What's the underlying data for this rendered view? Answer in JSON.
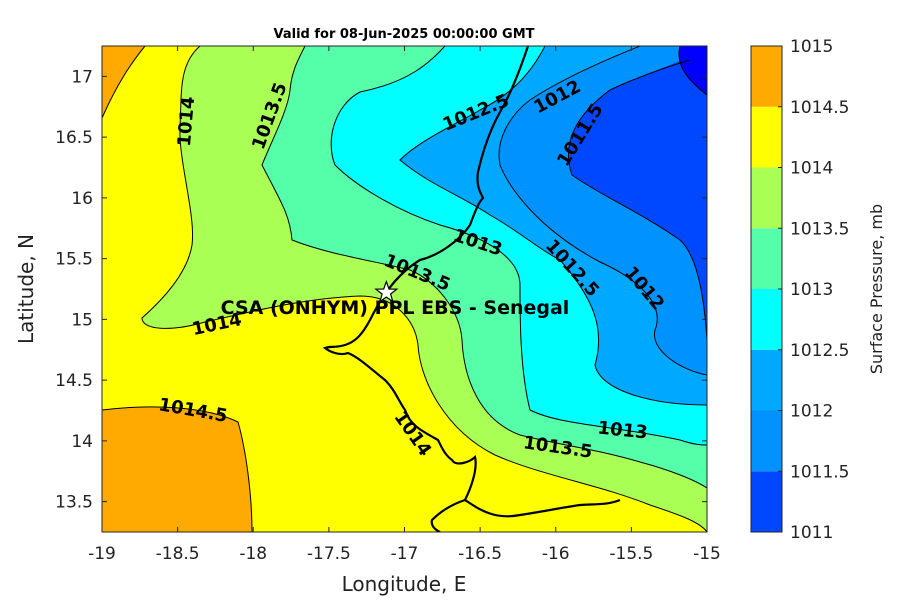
{
  "title": "Valid for 08-Jun-2025 00:00:00 GMT",
  "x_axis": {
    "label": "Longitude, E",
    "ticks": [
      "-19",
      "-18.5",
      "-18",
      "-17.5",
      "-17",
      "-16.5",
      "-16",
      "-15.5",
      "-15"
    ]
  },
  "y_axis": {
    "label": "Latitude, N",
    "ticks": [
      "13.5",
      "14",
      "14.5",
      "15",
      "15.5",
      "16",
      "16.5",
      "17"
    ]
  },
  "colorbar": {
    "label": "Surface Pressure, mb",
    "levels": [
      "1011",
      "1011.5",
      "1012",
      "1012.5",
      "1013",
      "1013.5",
      "1014",
      "1014.5",
      "1015"
    ],
    "colors": [
      "#0000ff",
      "#0048ff",
      "#0092ff",
      "#00a8ff",
      "#00ffff",
      "#55ffaa",
      "#aaff55",
      "#ffff00",
      "#ffaa00",
      "#ff5500"
    ]
  },
  "contour_labels": [
    "1014",
    "1013.5",
    "1012.5",
    "1012",
    "1011.5",
    "1013",
    "1013.5",
    "1012.5",
    "1012",
    "1014",
    "1014.5",
    "1014",
    "1013",
    "1013.5"
  ],
  "site": {
    "name": "CSA (ONHYM) PPL EBS  - Senegal",
    "marker": "star-marker-icon",
    "lon": -17.12,
    "lat": 15.22
  },
  "chart_data": {
    "type": "contour-map",
    "title": "Valid for 08-Jun-2025 00:00:00 GMT",
    "xlabel": "Longitude, E",
    "ylabel": "Latitude, N",
    "xlim": [
      -19,
      -15
    ],
    "ylim": [
      13.25,
      17.25
    ],
    "colorbar_range": [
      1011,
      1015
    ],
    "colorbar_step": 0.5,
    "variable": "Surface Pressure, mb"
  }
}
